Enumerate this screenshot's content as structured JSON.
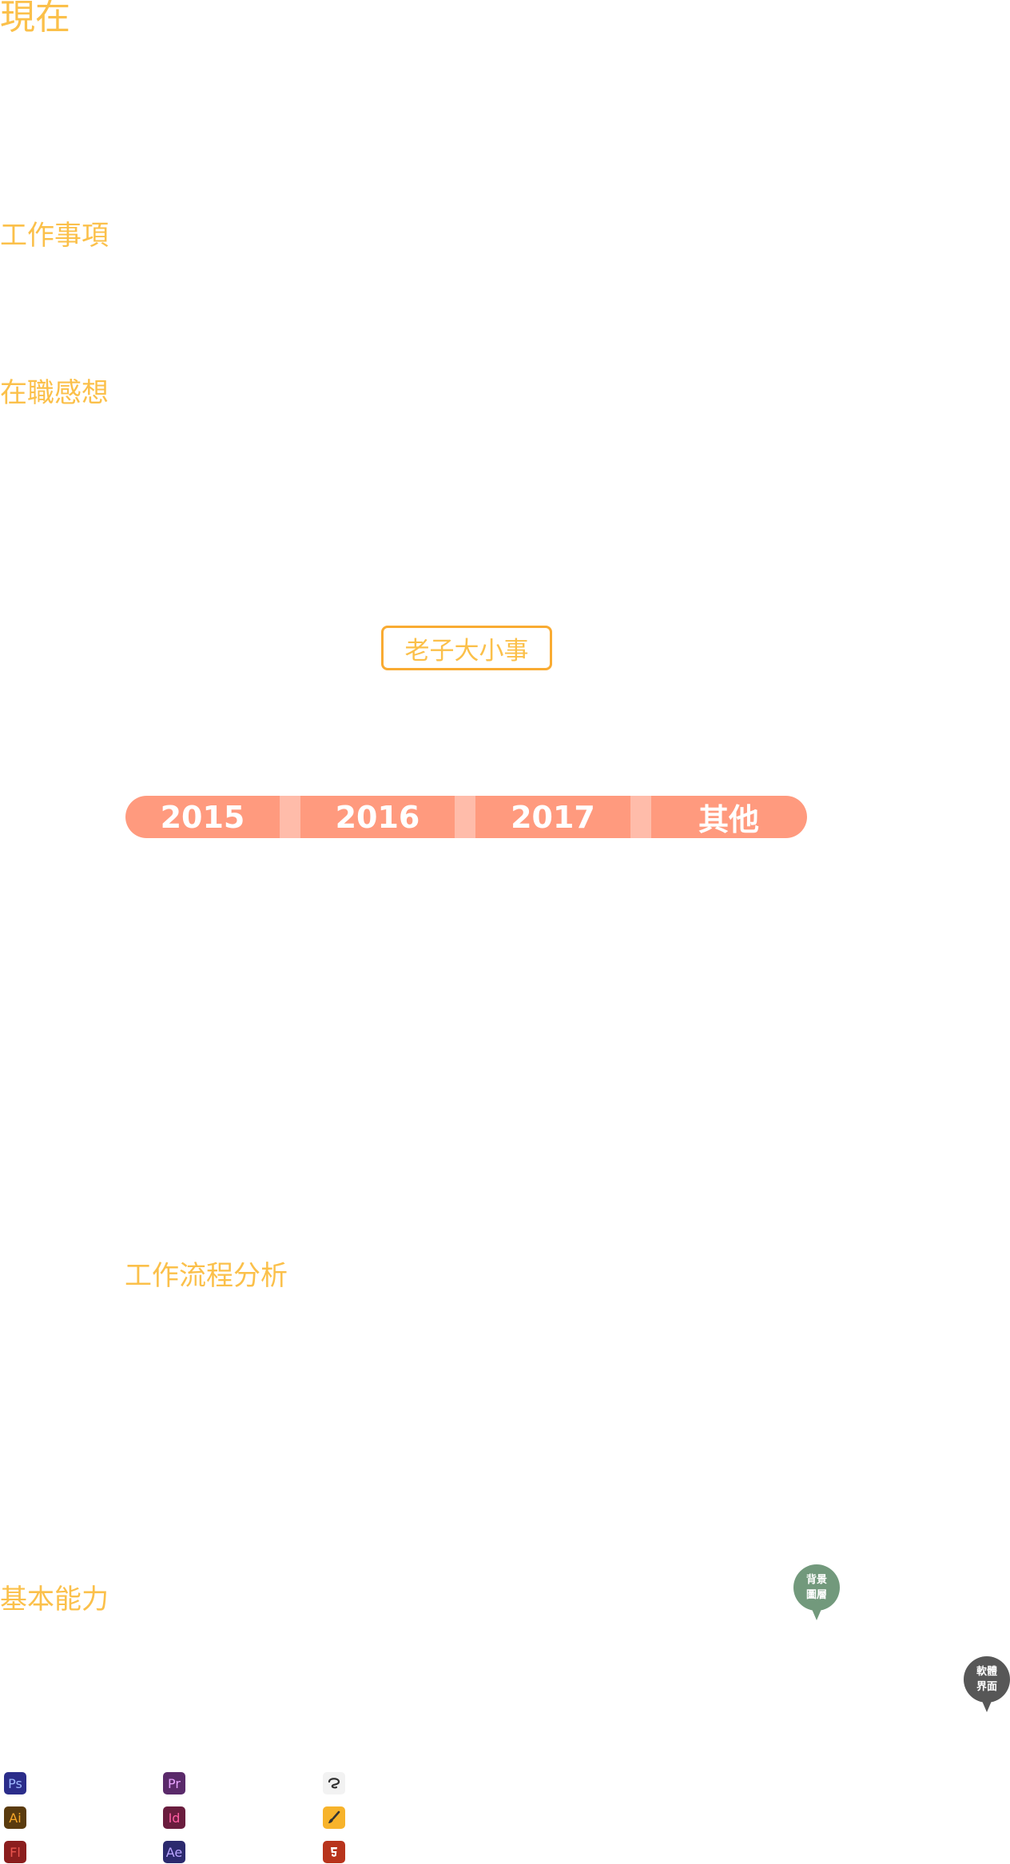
{
  "sections": {
    "now": "現在",
    "work_items": "工作事項",
    "reflections": "在職感想",
    "workflow": "工作流程分析",
    "skills": "基本能力"
  },
  "button": {
    "label": "老子大小事"
  },
  "year_tabs": [
    "2015",
    "2016",
    "2017",
    "其他"
  ],
  "pins": {
    "background_layer": [
      "背景",
      "圖層"
    ],
    "software_ui": [
      "軟體",
      "界面"
    ]
  },
  "apps": {
    "col1": [
      {
        "label": "Ps",
        "icon": "photoshop-icon",
        "bg": "#2b2d8a",
        "fg": "#9fb9ff"
      },
      {
        "label": "Ai",
        "icon": "illustrator-icon",
        "bg": "#5a3b0e",
        "fg": "#f8a829"
      },
      {
        "label": "Fl",
        "icon": "flash-icon",
        "bg": "#8b1e1e",
        "fg": "#e9554e"
      }
    ],
    "col2": [
      {
        "label": "Pr",
        "icon": "premiere-icon",
        "bg": "#5a2a6a",
        "fg": "#e7a3ff"
      },
      {
        "label": "Id",
        "icon": "indesign-icon",
        "bg": "#6a1d3e",
        "fg": "#ff5ea3"
      },
      {
        "label": "Ae",
        "icon": "after-effects-icon",
        "bg": "#2c2a6e",
        "fg": "#b9a4ff"
      }
    ],
    "col3": [
      {
        "icon": "clip-studio-icon",
        "glyph": "৩",
        "bg": "#f2f2f2",
        "fg": "#333333"
      },
      {
        "icon": "brush-app-icon",
        "glyph": "🖌",
        "bg": "#f7b32b",
        "fg": "#333333"
      },
      {
        "icon": "html5-icon",
        "glyph": "5",
        "bg": "#b8341c",
        "fg": "#ffffff"
      }
    ]
  }
}
